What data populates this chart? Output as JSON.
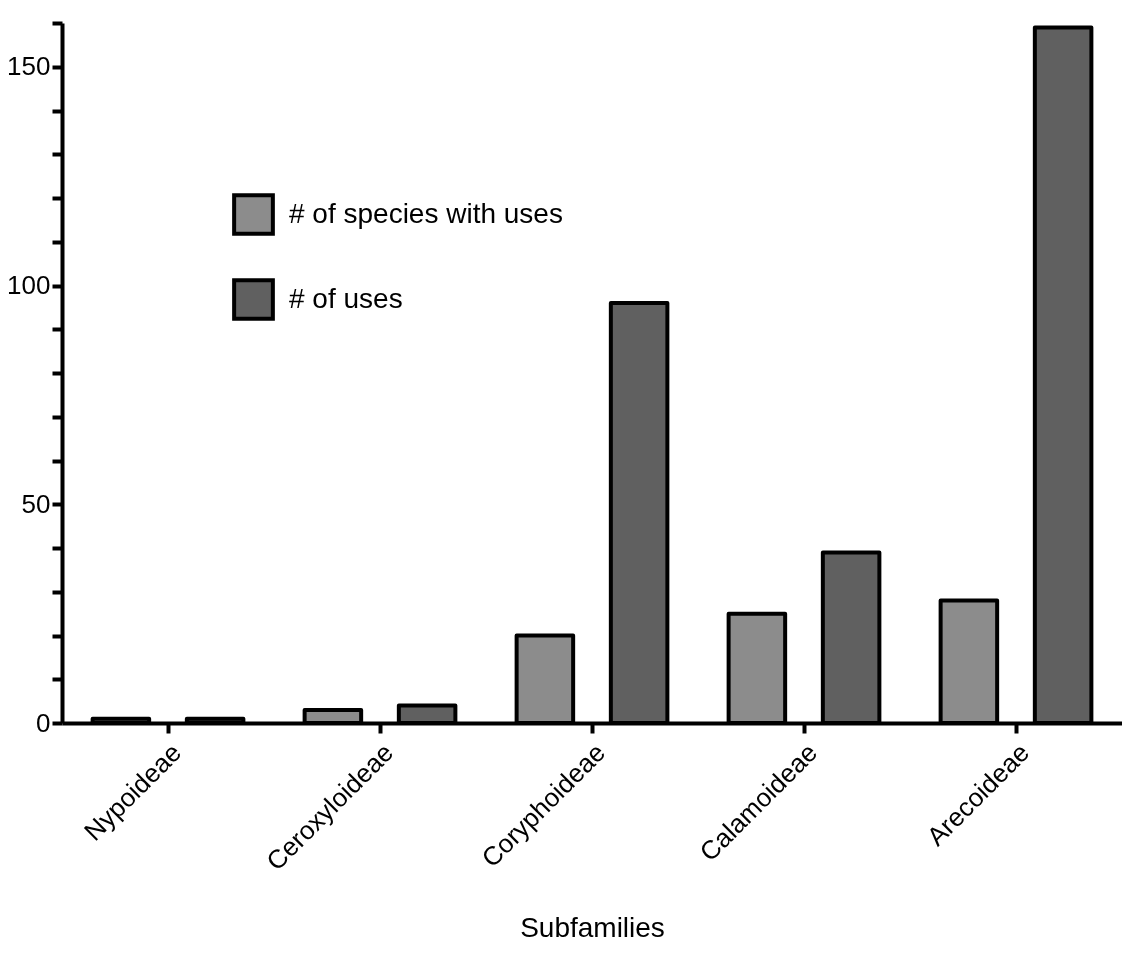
{
  "chart_data": {
    "type": "bar",
    "xlabel": "Subfamilies",
    "categories": [
      "Nypoideae",
      "Ceroxyloideae",
      "Coryphoideae",
      "Calamoideae",
      "Arecoideae"
    ],
    "series": [
      {
        "name": "# of species with uses",
        "color": "#8c8c8c",
        "values": [
          1,
          3,
          20,
          25,
          28
        ]
      },
      {
        "name": "# of uses",
        "color": "#606060",
        "values": [
          1,
          4,
          96,
          39,
          159
        ]
      }
    ],
    "ylim": [
      0,
      160
    ],
    "yticks": [
      0,
      {
        "value": 10,
        "label": null
      },
      {
        "value": 20,
        "label": null
      },
      {
        "value": 30,
        "label": null
      },
      {
        "value": 40,
        "label": null
      },
      50,
      {
        "value": 60,
        "label": null
      },
      {
        "value": 70,
        "label": null
      },
      {
        "value": 80,
        "label": null
      },
      {
        "value": 90,
        "label": null
      },
      100,
      {
        "value": 110,
        "label": null
      },
      {
        "value": 120,
        "label": null
      },
      {
        "value": 130,
        "label": null
      },
      {
        "value": 140,
        "label": null
      },
      150,
      {
        "value": 160,
        "label": null
      }
    ],
    "grid": false,
    "legend": "top left"
  }
}
